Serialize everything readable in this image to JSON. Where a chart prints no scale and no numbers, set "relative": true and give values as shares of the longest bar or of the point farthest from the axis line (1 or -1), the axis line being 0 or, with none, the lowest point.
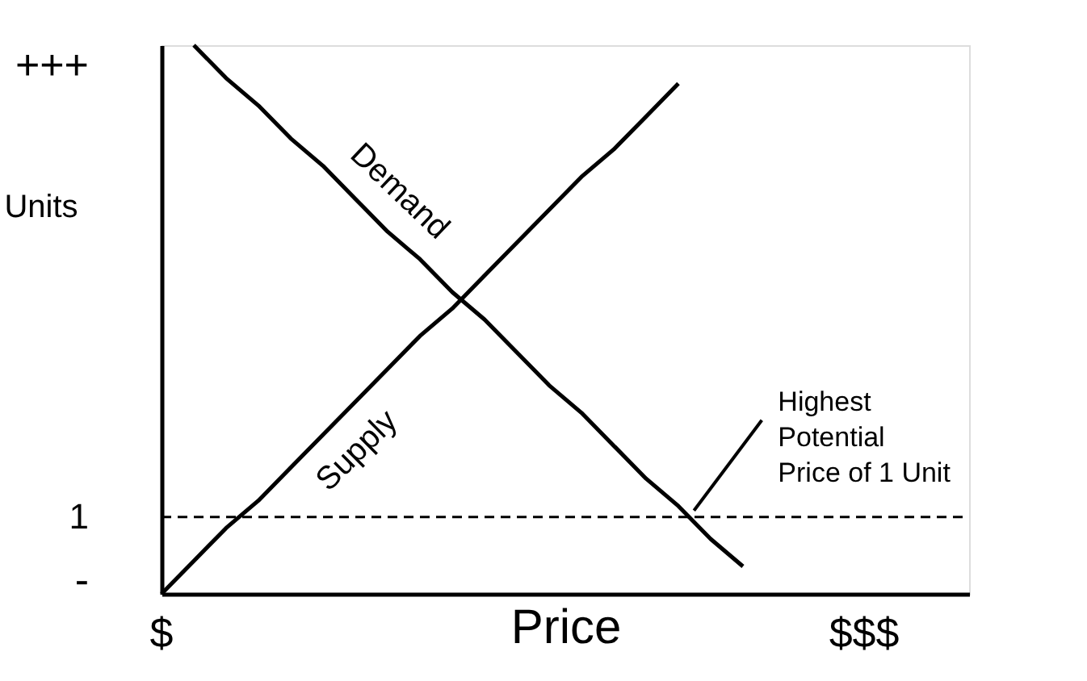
{
  "chart_data": {
    "type": "line",
    "xlabel": "Price",
    "ylabel": "Units",
    "relative": true,
    "categories": [
      null,
      null,
      null,
      null,
      null,
      null,
      null,
      null,
      null,
      null,
      null,
      null,
      null,
      null,
      null,
      null,
      null,
      null,
      null,
      null,
      null,
      null,
      null,
      null,
      null,
      null
    ],
    "series": [
      {
        "name": "Demand",
        "values": [
          null,
          1.0,
          0.94,
          0.89,
          0.83,
          0.78,
          0.72,
          0.66,
          0.61,
          0.55,
          0.5,
          0.44,
          0.38,
          0.33,
          0.27,
          0.21,
          0.16,
          0.1,
          0.05,
          null,
          null,
          null,
          null,
          null,
          null,
          null
        ],
        "color": "#000000"
      },
      {
        "name": "Supply",
        "values": [
          0,
          0.06,
          0.12,
          0.17,
          0.23,
          0.29,
          0.35,
          0.41,
          0.47,
          0.52,
          0.58,
          0.64,
          0.7,
          0.76,
          0.81,
          0.87,
          0.93,
          null,
          null,
          null,
          null,
          null,
          null,
          null,
          null,
          null
        ],
        "color": "#000000"
      }
    ],
    "ref_lines": [
      {
        "axis": "y",
        "value": 0.14,
        "line_style": "dashed",
        "color": "#000000"
      }
    ],
    "annotations": [
      "+++",
      "1",
      "-",
      "$",
      "$$$",
      "Highest\nPotential\nPrice of 1 Unit"
    ],
    "grid": false,
    "legend": false,
    "marker": "none",
    "line_style": "solid"
  }
}
